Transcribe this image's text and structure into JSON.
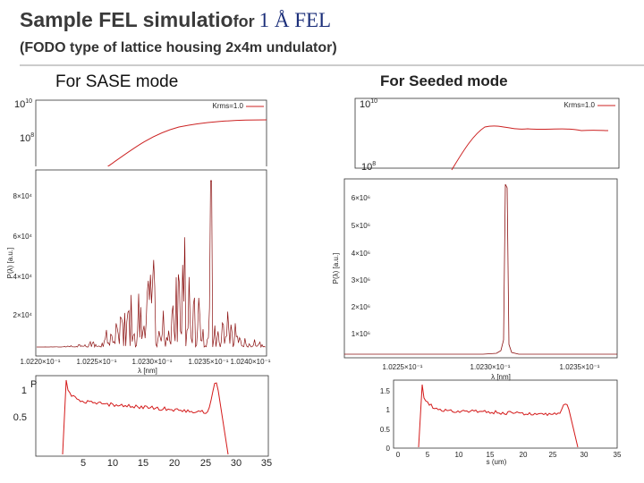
{
  "header": {
    "title": "Sample FEL simulatio",
    "title_for": "for",
    "title_tail": "1 Å FEL",
    "subtitle": "(FODO type of lattice housing 2x4m undulator)"
  },
  "left": {
    "heading": "For SASE mode",
    "gain": {
      "yticks": [
        {
          "base": "10",
          "exp": "10"
        },
        {
          "base": "10",
          "exp": "8"
        }
      ],
      "legend": "Krms=1.0"
    },
    "spectrum": {
      "ylabel": "P(λ) [a.u.]",
      "yticks": [
        "8×10⁴",
        "6×10⁴",
        "4×10⁴",
        "2×10⁴"
      ],
      "xticks": [
        "1.0220×10⁻¹",
        "1.0225×10⁻¹",
        "1.0230×10⁻¹",
        "1.0235×10⁻¹",
        "1.0240×10⁻¹"
      ],
      "xlabel": "λ [nm]"
    },
    "current": {
      "ylabel": "P",
      "yticks": [
        "1",
        "0.5"
      ],
      "xticks": [
        "5",
        "10",
        "15",
        "20",
        "25",
        "30",
        "35"
      ]
    }
  },
  "right": {
    "heading": "For Seeded mode",
    "gain": {
      "yticks": [
        {
          "base": "10",
          "exp": "10"
        },
        {
          "base": "10",
          "exp": "8"
        }
      ],
      "legend": "Krms=1.0"
    },
    "spectrum": {
      "ylabel": "P(λ) [a.u.]",
      "yticks": [
        "6×10⁶",
        "5×10⁶",
        "4×10⁶",
        "3×10⁶",
        "2×10⁶",
        "1×10⁶"
      ],
      "xticks": [
        "1.0225×10⁻¹",
        "1.0230×10⁻¹",
        "1.0235×10⁻¹"
      ],
      "xlabel": "λ [nm]"
    },
    "current": {
      "yticks": [
        "1.5",
        "1",
        "0.5",
        "0"
      ],
      "xticks": [
        "0",
        "5",
        "10",
        "15",
        "20",
        "25",
        "30",
        "35"
      ],
      "xlabel": "s (um)"
    }
  }
}
